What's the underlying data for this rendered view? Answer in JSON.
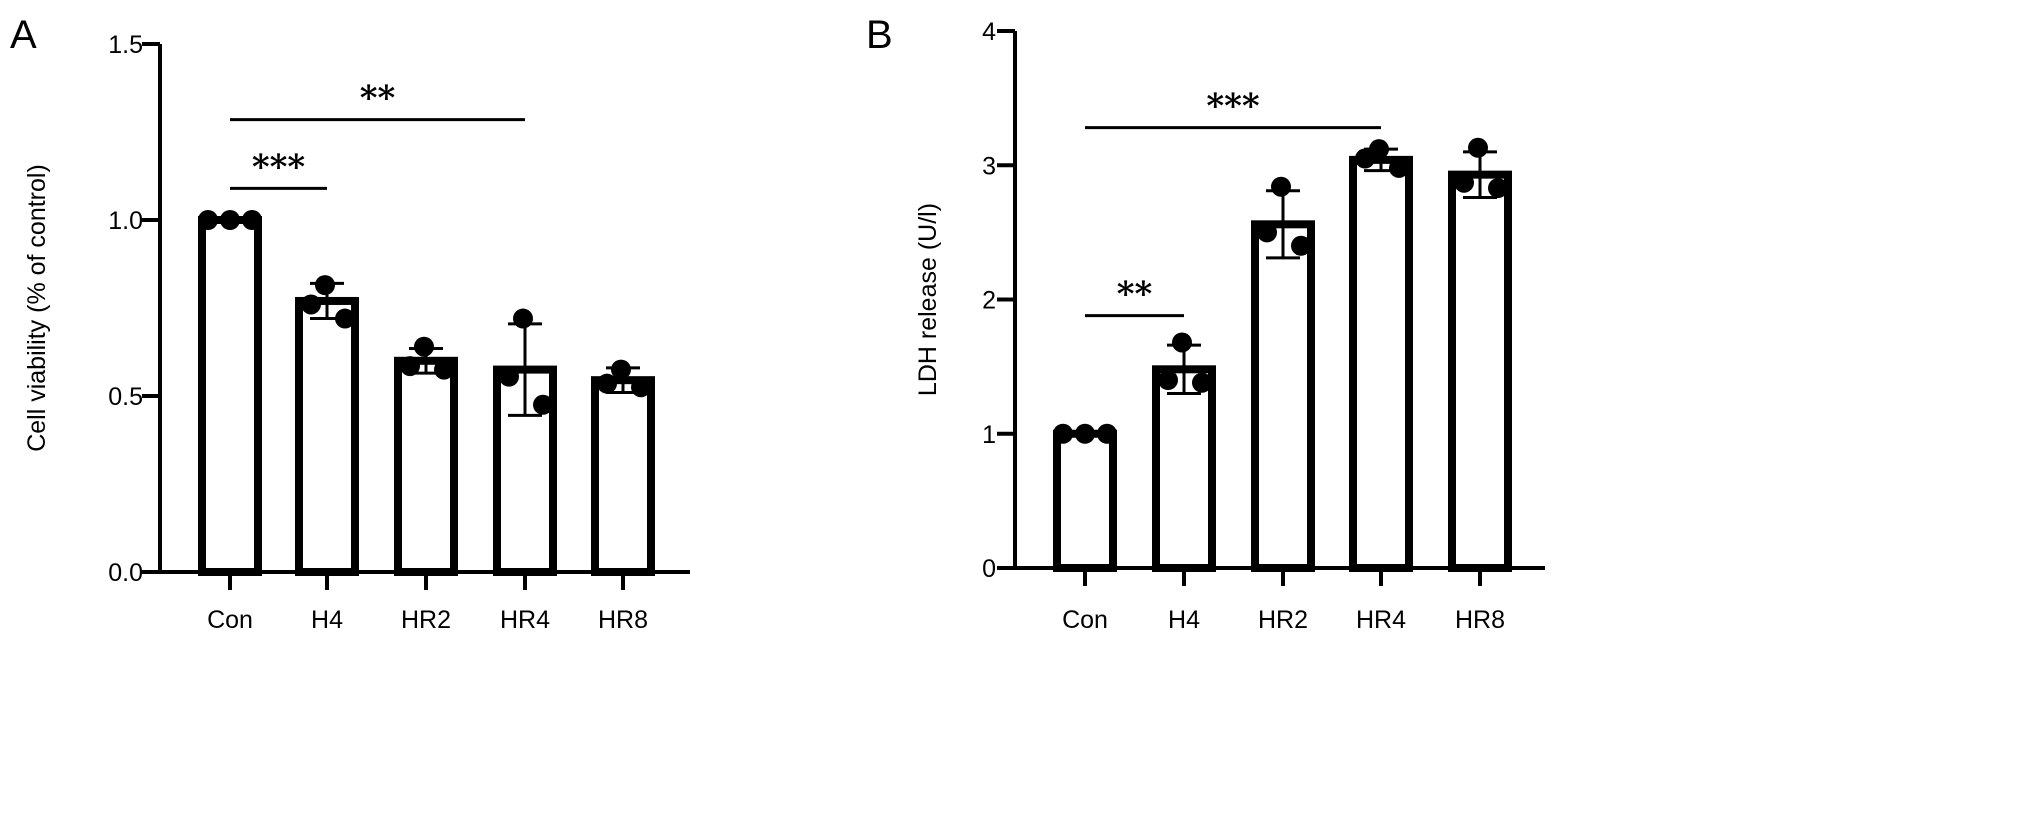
{
  "chart_data": [
    {
      "panel_label": "A",
      "type": "bar",
      "categories": [
        "Con",
        "H4",
        "HR2",
        "HR4",
        "HR8"
      ],
      "values": [
        1.0,
        0.77,
        0.6,
        0.575,
        0.545
      ],
      "error": [
        0.0,
        0.05,
        0.035,
        0.13,
        0.035
      ],
      "points": [
        [
          1.0,
          1.0,
          1.0
        ],
        [
          0.815,
          0.76,
          0.72
        ],
        [
          0.64,
          0.585,
          0.575
        ],
        [
          0.72,
          0.555,
          0.475
        ],
        [
          0.575,
          0.535,
          0.525
        ]
      ],
      "ylabel": "Cell viability (% of control)",
      "xlabel": "",
      "ylim": [
        0,
        1.5
      ],
      "yticks": [
        0.0,
        0.5,
        1.0,
        1.5
      ],
      "ytick_labels": [
        "0.0",
        "0.5",
        "1.0",
        "1.5"
      ],
      "significance": [
        {
          "from": 0,
          "to": 1,
          "y": 1.09,
          "label": "***"
        },
        {
          "from": 0,
          "to": 3,
          "y": 1.285,
          "label": "**"
        }
      ]
    },
    {
      "panel_label": "B",
      "type": "bar",
      "categories": [
        "Con",
        "H4",
        "HR2",
        "HR4",
        "HR8"
      ],
      "values": [
        1.0,
        1.48,
        2.56,
        3.04,
        2.93
      ],
      "error": [
        0.0,
        0.18,
        0.25,
        0.08,
        0.17
      ],
      "points": [
        [
          1.0,
          1.0,
          1.0
        ],
        [
          1.68,
          1.4,
          1.38
        ],
        [
          2.84,
          2.5,
          2.4
        ],
        [
          3.12,
          3.05,
          2.98
        ],
        [
          3.13,
          2.87,
          2.83
        ]
      ],
      "ylabel": "LDH release (U/l)",
      "xlabel": "",
      "ylim": [
        0,
        4
      ],
      "yticks": [
        0,
        1,
        2,
        3,
        4
      ],
      "ytick_labels": [
        "0",
        "1",
        "2",
        "3",
        "4"
      ],
      "significance": [
        {
          "from": 0,
          "to": 1,
          "y": 1.88,
          "label": "**"
        },
        {
          "from": 0,
          "to": 3,
          "y": 3.28,
          "label": "***"
        }
      ]
    }
  ]
}
